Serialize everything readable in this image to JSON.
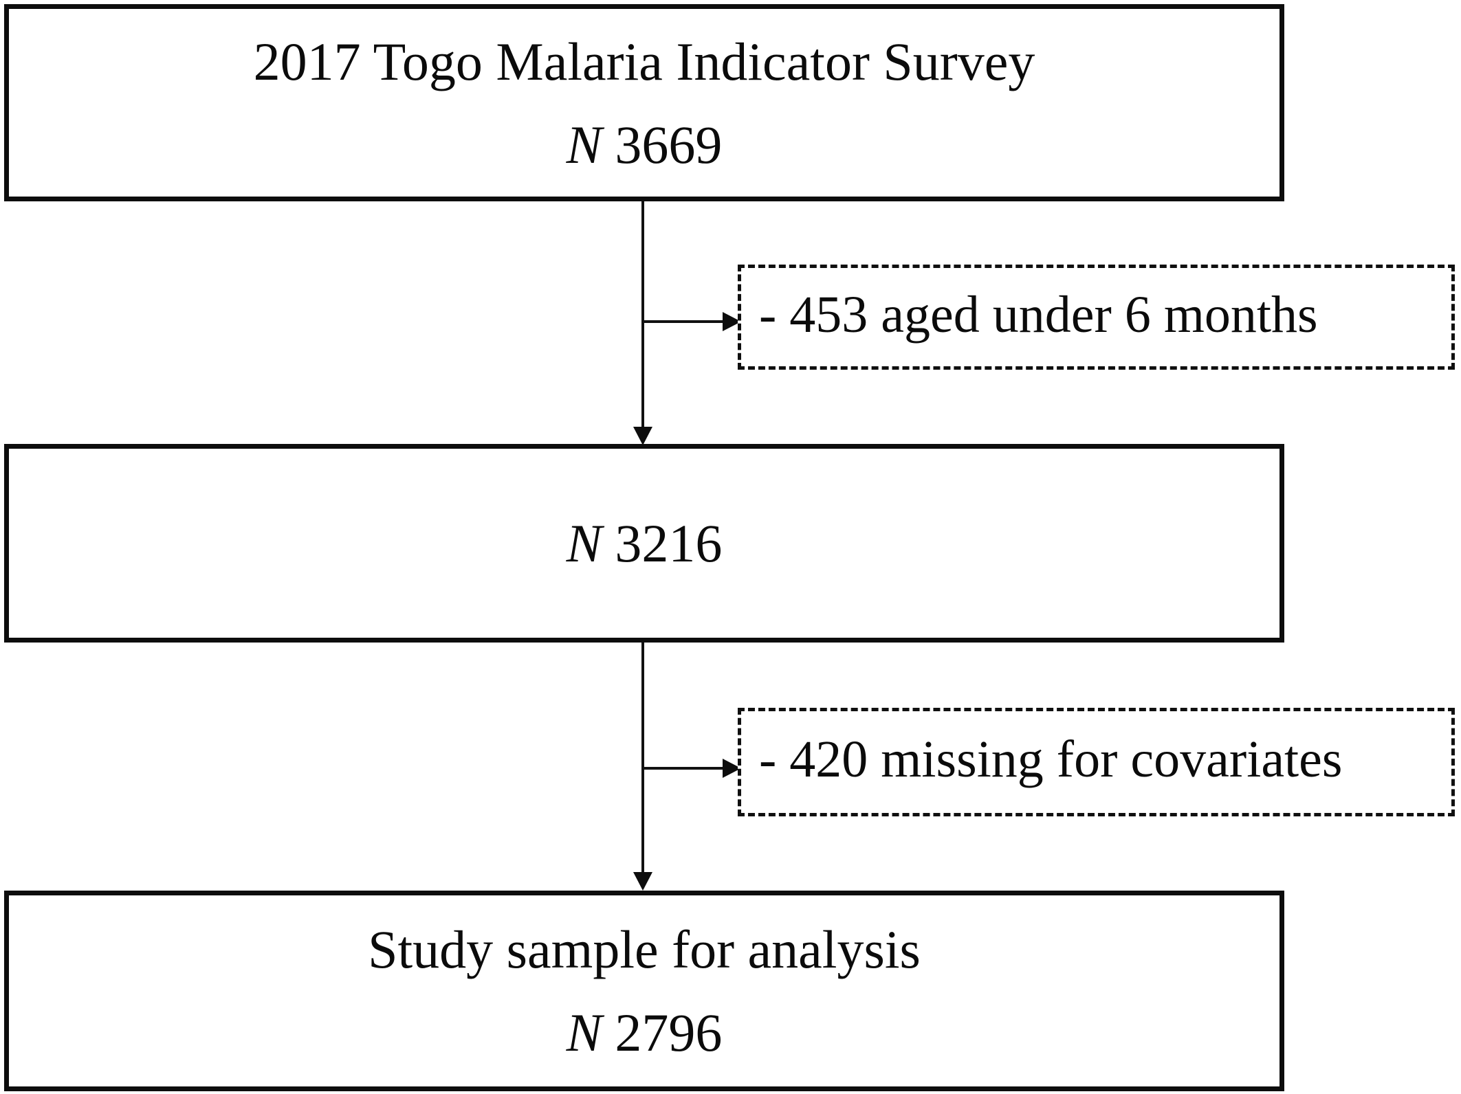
{
  "flow": {
    "source_box": {
      "title": "2017 Togo Malaria Indicator Survey",
      "n_prefix": "N",
      "n_value": "3669"
    },
    "exclusion_1": {
      "label": "- 453 aged under 6 months"
    },
    "intermediate_box": {
      "n_prefix": "N",
      "n_value": "3216"
    },
    "exclusion_2": {
      "label": "- 420 missing for covariates"
    },
    "final_box": {
      "title": "Study sample for analysis",
      "n_prefix": "N",
      "n_value": "2796"
    }
  },
  "colors": {
    "ink": "#0d0d0d",
    "background": "#ffffff"
  }
}
